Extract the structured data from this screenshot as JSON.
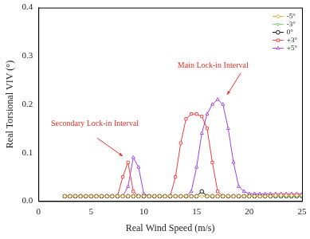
{
  "chart_data": {
    "type": "line",
    "xlabel": "Real Wind Speed (m/s)",
    "ylabel": "Real Torsional VIV (°)",
    "x": [
      2.5,
      3,
      3.5,
      4,
      4.5,
      5,
      5.5,
      6,
      6.5,
      7,
      7.5,
      8,
      8.5,
      9,
      9.5,
      10,
      10.5,
      11,
      11.5,
      12,
      12.5,
      13,
      13.5,
      14,
      14.5,
      15,
      15.5,
      16,
      16.5,
      17,
      17.5,
      18,
      18.5,
      19,
      19.5,
      20,
      20.5,
      21,
      21.5,
      22,
      22.5,
      23,
      23.5,
      24,
      24.5,
      25
    ],
    "series": [
      {
        "name": "-5°",
        "color": "#f0a030",
        "marker": "diamond",
        "values": [
          0.01,
          0.01,
          0.01,
          0.01,
          0.01,
          0.01,
          0.01,
          0.01,
          0.01,
          0.01,
          0.01,
          0.01,
          0.01,
          0.01,
          0.01,
          0.01,
          0.01,
          0.01,
          0.01,
          0.01,
          0.01,
          0.01,
          0.01,
          0.01,
          0.01,
          0.01,
          0.01,
          0.01,
          0.01,
          0.01,
          0.01,
          0.01,
          0.01,
          0.01,
          0.01,
          0.01,
          0.01,
          0.01,
          0.01,
          0.01,
          0.012,
          0.012,
          0.012,
          0.012,
          0.012,
          0.012
        ]
      },
      {
        "name": "-3°",
        "color": "#7fcf7f",
        "marker": "triangle_down",
        "values": [
          0.01,
          0.01,
          0.01,
          0.01,
          0.01,
          0.01,
          0.01,
          0.01,
          0.01,
          0.01,
          0.01,
          0.01,
          0.01,
          0.01,
          0.01,
          0.01,
          0.01,
          0.01,
          0.01,
          0.01,
          0.01,
          0.01,
          0.01,
          0.01,
          0.01,
          0.01,
          0.01,
          0.01,
          0.01,
          0.01,
          0.01,
          0.01,
          0.01,
          0.01,
          0.01,
          0.01,
          0.01,
          0.01,
          0.01,
          0.01,
          0.01,
          0.01,
          0.01,
          0.01,
          0.01,
          0.01
        ]
      },
      {
        "name": "0°",
        "color": "#000000",
        "marker": "circle",
        "values": [
          0.01,
          0.01,
          0.01,
          0.01,
          0.01,
          0.01,
          0.01,
          0.01,
          0.01,
          0.01,
          0.01,
          0.01,
          0.01,
          0.01,
          0.01,
          0.01,
          0.01,
          0.01,
          0.01,
          0.01,
          0.01,
          0.01,
          0.01,
          0.01,
          0.01,
          0.01,
          0.02,
          0.01,
          0.01,
          0.01,
          0.01,
          0.01,
          0.01,
          0.01,
          0.01,
          0.01,
          0.01,
          0.01,
          0.01,
          0.01,
          0.01,
          0.01,
          0.01,
          0.01,
          0.01,
          0.01
        ]
      },
      {
        "name": "+3°",
        "color": "#f03c3c",
        "marker": "square",
        "values": [
          0.01,
          0.01,
          0.01,
          0.01,
          0.01,
          0.01,
          0.01,
          0.01,
          0.01,
          0.01,
          0.01,
          0.05,
          0.08,
          0.02,
          0.01,
          0.01,
          0.01,
          0.01,
          0.01,
          0.01,
          0.01,
          0.05,
          0.12,
          0.17,
          0.18,
          0.18,
          0.175,
          0.15,
          0.08,
          0.02,
          0.01,
          0.01,
          0.01,
          0.01,
          0.01,
          0.01,
          0.01,
          0.01,
          0.01,
          0.01,
          0.012,
          0.012,
          0.012,
          0.012,
          0.012,
          0.012
        ]
      },
      {
        "name": "+5°",
        "color": "#a040e0",
        "marker": "triangle",
        "values": [
          0.01,
          0.01,
          0.01,
          0.01,
          0.01,
          0.01,
          0.01,
          0.01,
          0.01,
          0.01,
          0.01,
          0.01,
          0.03,
          0.09,
          0.07,
          0.015,
          0.01,
          0.01,
          0.01,
          0.01,
          0.01,
          0.01,
          0.01,
          0.01,
          0.02,
          0.07,
          0.14,
          0.18,
          0.2,
          0.21,
          0.2,
          0.15,
          0.08,
          0.03,
          0.02,
          0.015,
          0.015,
          0.015,
          0.015,
          0.015,
          0.015,
          0.015,
          0.015,
          0.015,
          0.015,
          0.015
        ]
      }
    ],
    "xlim": [
      0,
      25
    ],
    "ylim": [
      0,
      0.4
    ],
    "xticks": [
      0,
      5,
      10,
      15,
      20,
      25
    ],
    "yticks": [
      {
        "value": 0,
        "label": "0.0"
      },
      {
        "value": 0.1,
        "label": "0.1"
      },
      {
        "value": 0.2,
        "label": "0.2"
      },
      {
        "value": 0.3,
        "label": "0.3"
      },
      {
        "value": 0.4,
        "label": "0.4"
      }
    ],
    "legend": "top right",
    "grid": false,
    "annotations": [
      {
        "text": "Secondary Lock-in Interval",
        "color": "#e8302a"
      },
      {
        "text": "Main Lock-in Interval",
        "color": "#e8302a"
      }
    ]
  }
}
